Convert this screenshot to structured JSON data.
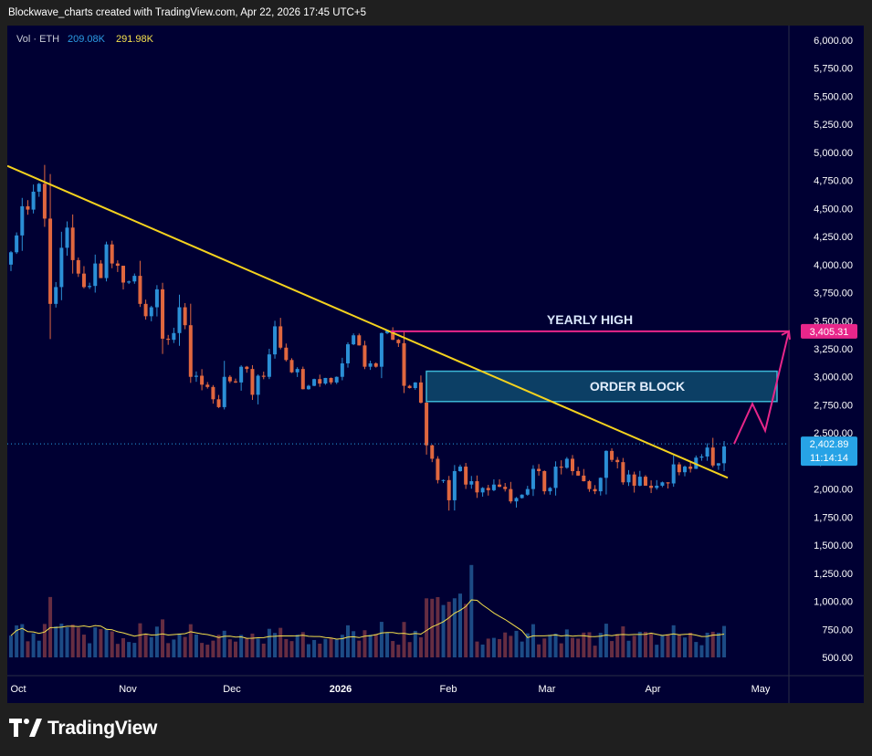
{
  "header": {
    "attribution": "Blockwave_charts created with TradingView.com, Apr 22, 2026 17:45 UTC+5"
  },
  "legend": {
    "label": "Vol · ETH",
    "vol_value": "209.08K",
    "vol_ma_value": "291.98K"
  },
  "footer": {
    "brand": "TradingView",
    "logo_icon": "tradingview-logo-icon"
  },
  "colors": {
    "background": "#000033",
    "up": "#2b8fd6",
    "down": "#e0673f",
    "trendline": "#f4d21e",
    "order_block_fill": "#0e4a6e",
    "order_block_border": "#3bb7d6",
    "yearly_high": "#e8268a",
    "price_tag": "#27a3e6",
    "axis_text": "#ffffff"
  },
  "chart_data": {
    "type": "candlestick",
    "symbol": "ETH",
    "x_ticks": [
      "Oct",
      "Nov",
      "Dec",
      "2026",
      "Feb",
      "Mar",
      "Apr",
      "May"
    ],
    "y_ticks": [
      "6,000.00",
      "5,750.00",
      "5,500.00",
      "5,250.00",
      "5,000.00",
      "4,750.00",
      "4,500.00",
      "4,250.00",
      "4,000.00",
      "3,750.00",
      "3,500.00",
      "3,250.00",
      "3,000.00",
      "2,750.00",
      "2,500.00",
      "2,250.00",
      "2,000.00",
      "1,750.00",
      "1,500.00",
      "1,250.00",
      "1,000.00",
      "750.00",
      "500.00"
    ],
    "ylim": [
      350,
      6130
    ],
    "price_close": [
      4110,
      4260,
      4520,
      4490,
      4650,
      4720,
      4410,
      3650,
      3800,
      4150,
      4330,
      4040,
      3920,
      3800,
      3810,
      4010,
      3880,
      4180,
      4010,
      3990,
      3840,
      3850,
      3900,
      3650,
      3540,
      3620,
      3780,
      3340,
      3330,
      3390,
      3620,
      3460,
      3000,
      3010,
      2930,
      2910,
      2800,
      2730,
      3000,
      2960,
      2950,
      3090,
      3070,
      2840,
      3010,
      3000,
      3200,
      3450,
      3260,
      3150,
      3040,
      3070,
      2890,
      2920,
      2980,
      2940,
      2990,
      2950,
      3000,
      3120,
      3290,
      3370,
      3280,
      3090,
      3120,
      3090,
      3390,
      3410,
      3330,
      3300,
      2920,
      2900,
      2950,
      2770,
      2390,
      2270,
      2080,
      2080,
      1900,
      2160,
      2200,
      2040,
      2070,
      1970,
      2010,
      1990,
      2040,
      2020,
      2000,
      1890,
      1920,
      1950,
      2000,
      2180,
      2160,
      1980,
      2010,
      2200,
      2190,
      2270,
      2160,
      2120,
      2070,
      2000,
      1980,
      2100,
      2340,
      2260,
      2240,
      2060,
      2130,
      2030,
      2110,
      2030,
      2010,
      2030,
      2060,
      2050,
      2220,
      2150,
      2200,
      2180,
      2280,
      2290,
      2370,
      2210,
      2230,
      2380
    ],
    "price_last": "2,402.89",
    "countdown": "11:14:14",
    "yearly_high": {
      "label": "YEARLY HIGH",
      "value": 3405.31,
      "value_label": "3,405.31"
    },
    "order_block": {
      "label": "ORDER BLOCK",
      "low": 2780,
      "high": 3050
    },
    "trendline": {
      "start_value": 4880,
      "end_value": 2100
    },
    "projection": [
      2402.89,
      2760,
      2520,
      3405.31
    ],
    "volume_label_series": [
      "Vol · ETH",
      "Vol MA"
    ]
  }
}
